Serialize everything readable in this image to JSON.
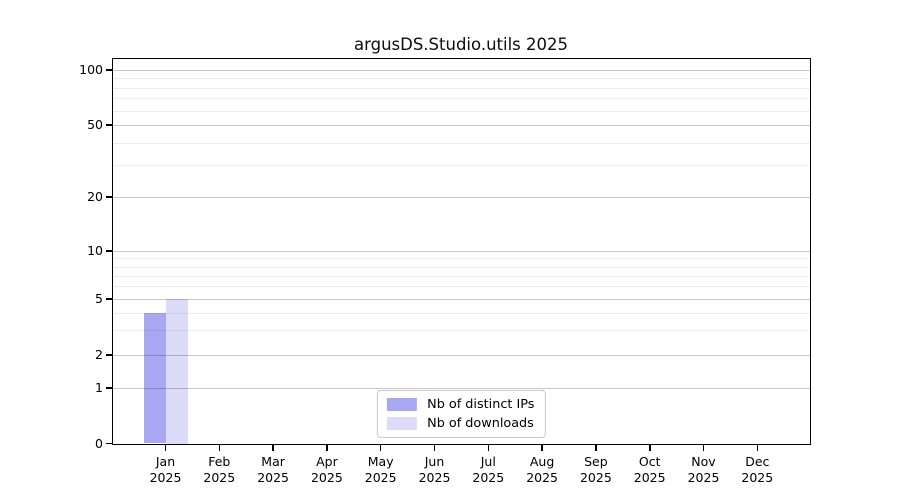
{
  "title": "argusDS.Studio.utils 2025",
  "chart_data": {
    "type": "bar",
    "title": "argusDS.Studio.utils 2025",
    "categories": [
      "Jan 2025",
      "Feb 2025",
      "Mar 2025",
      "Apr 2025",
      "May 2025",
      "Jun 2025",
      "Jul 2025",
      "Aug 2025",
      "Sep 2025",
      "Oct 2025",
      "Nov 2025",
      "Dec 2025"
    ],
    "series": [
      {
        "name": "Nb of distinct IPs",
        "color": "#a8a8f2",
        "values": [
          4,
          0,
          0,
          0,
          0,
          0,
          0,
          0,
          0,
          0,
          0,
          0
        ]
      },
      {
        "name": "Nb of downloads",
        "color": "#dcdcf9",
        "values": [
          5,
          0,
          0,
          0,
          0,
          0,
          0,
          0,
          0,
          0,
          0,
          0
        ]
      }
    ],
    "xlabel": "",
    "ylabel": "",
    "y_scale": "symlog",
    "y_ticks": [
      0,
      1,
      2,
      5,
      10,
      20,
      50,
      100
    ],
    "y_tick_labels": [
      "0",
      "1",
      "2",
      "5",
      "10",
      "20",
      "50",
      "100"
    ],
    "y_minor_ticks": [
      3,
      4,
      6,
      7,
      8,
      9,
      30,
      40,
      60,
      70,
      80,
      90
    ],
    "ylim": [
      0,
      115
    ],
    "grid": true,
    "legend_position": "lower center",
    "frame_color": "#000000",
    "major_grid_color": "#c9c9c9",
    "minor_grid_color": "#ececec"
  }
}
